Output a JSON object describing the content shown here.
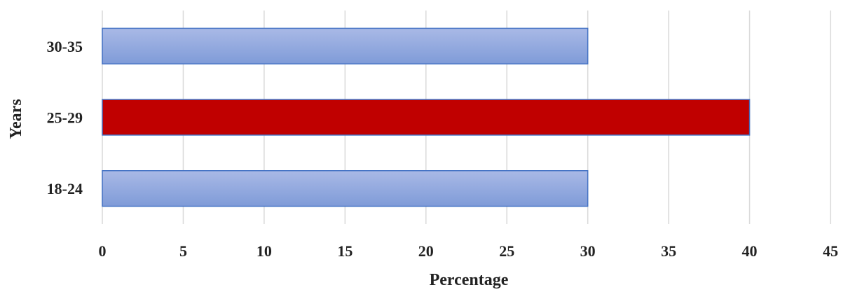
{
  "chart_data": {
    "type": "bar",
    "orientation": "horizontal",
    "categories": [
      "30-35",
      "25-29",
      "18-24"
    ],
    "values": [
      30,
      40,
      30
    ],
    "bar_colors": [
      "#8fa6dc",
      "#c00000",
      "#8fa6dc"
    ],
    "bar_border_color": "#4472c4",
    "xlabel": "Percentage",
    "ylabel": "Years",
    "xlim": [
      0,
      45
    ],
    "xticks": [
      "0",
      "5",
      "10",
      "15",
      "20",
      "25",
      "30",
      "35",
      "40",
      "45"
    ],
    "grid": true,
    "legend": "none"
  }
}
